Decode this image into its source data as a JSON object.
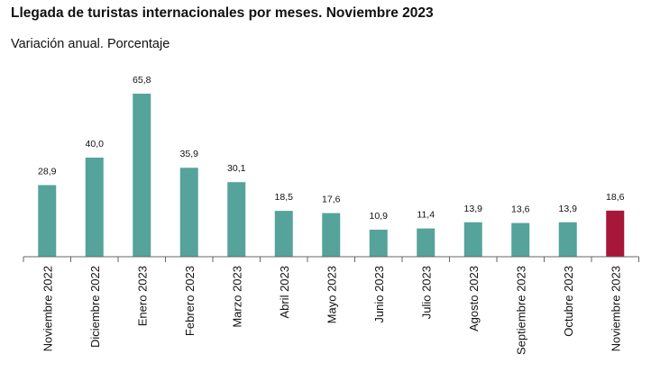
{
  "title": "Llegada de turistas internacionales por meses. Noviembre 2023",
  "subtitle": "Variación anual. Porcentaje",
  "colors": {
    "bar": "#55a39a",
    "highlight": "#a6173a",
    "axis": "#666666"
  },
  "chart_data": {
    "type": "bar",
    "title": "Llegada de turistas internacionales por meses. Noviembre 2023",
    "subtitle": "Variación anual. Porcentaje",
    "categories": [
      "Noviembre 2022",
      "Diciembre 2022",
      "Enero 2023",
      "Febrero 2023",
      "Marzo 2023",
      "Abril 2023",
      "Mayo 2023",
      "Junio 2023",
      "Julio 2023",
      "Agosto 2023",
      "Septiembre 2023",
      "Octubre 2023",
      "Noviembre 2023"
    ],
    "values": [
      28.9,
      40.0,
      65.8,
      35.9,
      30.1,
      18.5,
      17.6,
      10.9,
      11.4,
      13.9,
      13.6,
      13.9,
      18.6
    ],
    "value_labels": [
      "28,9",
      "40,0",
      "65,8",
      "35,9",
      "30,1",
      "18,5",
      "17,6",
      "10,9",
      "11,4",
      "13,9",
      "13,6",
      "13,9",
      "18,6"
    ],
    "highlight_index": 12,
    "ylim": [
      0,
      70
    ],
    "grid": false
  }
}
